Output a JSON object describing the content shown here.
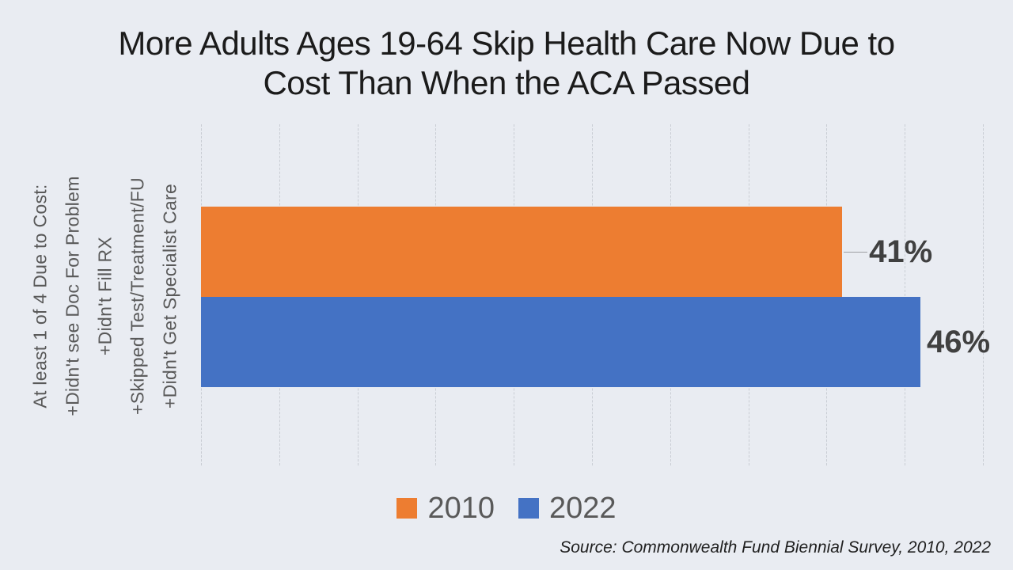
{
  "title": {
    "line1": "More Adults Ages 19-64 Skip Health Care Now Due to",
    "line2": "Cost Than When the ACA Passed"
  },
  "y_axis_label": {
    "lines": [
      "At least 1 of 4 Due to Cost:",
      "+Didn't see Doc For Problem",
      "+Didn't Fill RX",
      "+Skipped Test/Treatment/FU",
      "+Didn't Get Specialist Care"
    ]
  },
  "chart_data": {
    "type": "bar",
    "orientation": "horizontal",
    "title": "More Adults Ages 19-64 Skip Health Care Now Due to Cost Than When the ACA Passed",
    "category": "At least 1 of 4 Due to Cost: +Didn't see Doc For Problem +Didn't Fill RX +Skipped Test/Treatment/FU +Didn't Get Specialist Care",
    "series": [
      {
        "name": "2010",
        "values": [
          41
        ],
        "data_label": "41%",
        "color": "#ED7D31"
      },
      {
        "name": "2022",
        "values": [
          46
        ],
        "data_label": "46%",
        "color": "#4472C4"
      }
    ],
    "xlim": [
      0,
      50
    ],
    "gridline_step": 5,
    "grid": "vertical-dashed",
    "legend_position": "bottom",
    "axis_tick_labels_visible": false
  },
  "legend": {
    "items": [
      {
        "label": "2010",
        "color": "#ED7D31"
      },
      {
        "label": "2022",
        "color": "#4472C4"
      }
    ]
  },
  "source": {
    "text": "Source: Commonwealth Fund Biennial Survey, 2010, 2022"
  },
  "colors": {
    "background": "#e9ecf2",
    "title_text": "#1b1b1b",
    "axis_label_text": "#595959",
    "legend_text": "#595959",
    "data_label_text": "#404040",
    "gridline": "#c9cdd4",
    "leader_line": "#9d9fa2",
    "bar_2010": "#ED7D31",
    "bar_2022": "#4472C4"
  }
}
